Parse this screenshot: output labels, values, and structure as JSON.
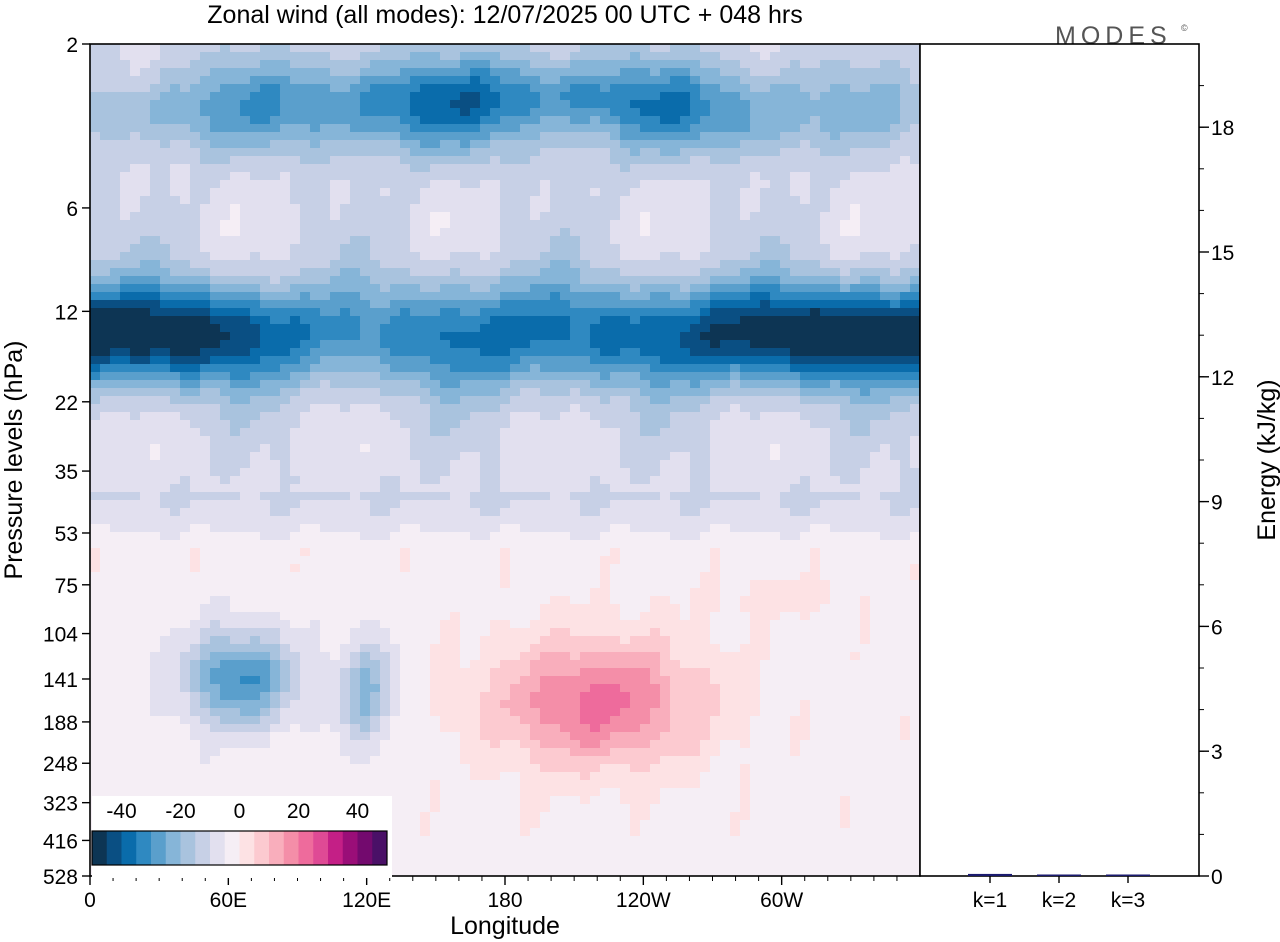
{
  "chart_data": [
    {
      "type": "heatmap",
      "title": "Zonal wind (all modes):  12/07/2025  00 UTC  + 048 hrs",
      "xlabel": "Longitude",
      "ylabel": "Pressure levels (hPa)",
      "x_ticks": [
        "0",
        "60E",
        "120E",
        "180",
        "120W",
        "60W"
      ],
      "y_ticks": [
        "2",
        "6",
        "12",
        "22",
        "35",
        "53",
        "75",
        "104",
        "141",
        "188",
        "248",
        "323",
        "416",
        "528"
      ],
      "y_scale": "log",
      "colorbar": {
        "ticks": [
          "-40",
          "-20",
          "0",
          "20",
          "40"
        ],
        "range": [
          -50,
          50
        ],
        "step": 5,
        "placement": "bottom-left",
        "colors": [
          "#0d3554",
          "#0a4f83",
          "#0a6cab",
          "#2f89c1",
          "#5a9fcc",
          "#86b5d8",
          "#a9c3de",
          "#c7d0e6",
          "#e2e0ef",
          "#f5eef5",
          "#fde2e4",
          "#fccad0",
          "#f9aebc",
          "#f48ea8",
          "#ee6b9c",
          "#df4a95",
          "#c41f86",
          "#9a0e78",
          "#730a6e",
          "#4a1067"
        ]
      },
      "features": [
        {
          "lon": 175,
          "p": 3,
          "u": -28,
          "dlon": 145,
          "dp": 0.32
        },
        {
          "lon": 205,
          "p": 3.5,
          "u": 7,
          "dlon": 32,
          "dp": 0.18
        },
        {
          "lon": 30,
          "p": 3.3,
          "u": -4,
          "dlon": 45,
          "dp": 0.22
        },
        {
          "lon": 280,
          "p": 3.4,
          "u": -6,
          "dlon": 40,
          "dp": 0.22
        },
        {
          "lon": 40,
          "p": 14,
          "u": -36,
          "dlon": 65,
          "dp": 0.34
        },
        {
          "lon": 300,
          "p": 14,
          "u": -37,
          "dlon": 70,
          "dp": 0.34
        },
        {
          "lon": 175,
          "p": 14,
          "u": -26,
          "dlon": 70,
          "dp": 0.38
        },
        {
          "lon": 65,
          "p": 141,
          "u": -29,
          "dlon": 24,
          "dp": 0.32
        },
        {
          "lon": 120,
          "p": 155,
          "u": -19,
          "dlon": 12,
          "dp": 0.36
        },
        {
          "lon": 220,
          "p": 165,
          "u": 24,
          "dlon": 45,
          "dp": 0.42
        },
        {
          "lon": 300,
          "p": 82,
          "u": 5,
          "dlon": 32,
          "dp": 0.12
        },
        {
          "lon": 80,
          "p": 500,
          "u": 6,
          "dlon": 18,
          "dp": 0.12
        }
      ]
    },
    {
      "type": "bar",
      "categories": [
        "k=1",
        "k=2",
        "k=3"
      ],
      "values": [
        0.05,
        0.02,
        0.01
      ],
      "ylabel": "Energy (kJ/kg)",
      "y_ticks": [
        "0",
        "3",
        "6",
        "9",
        "12",
        "15",
        "18"
      ],
      "ylim": [
        0,
        20
      ],
      "bar_color": "#1a1a6e"
    }
  ],
  "branding": {
    "logo_text": "MODES",
    "logo_mark": "©"
  }
}
